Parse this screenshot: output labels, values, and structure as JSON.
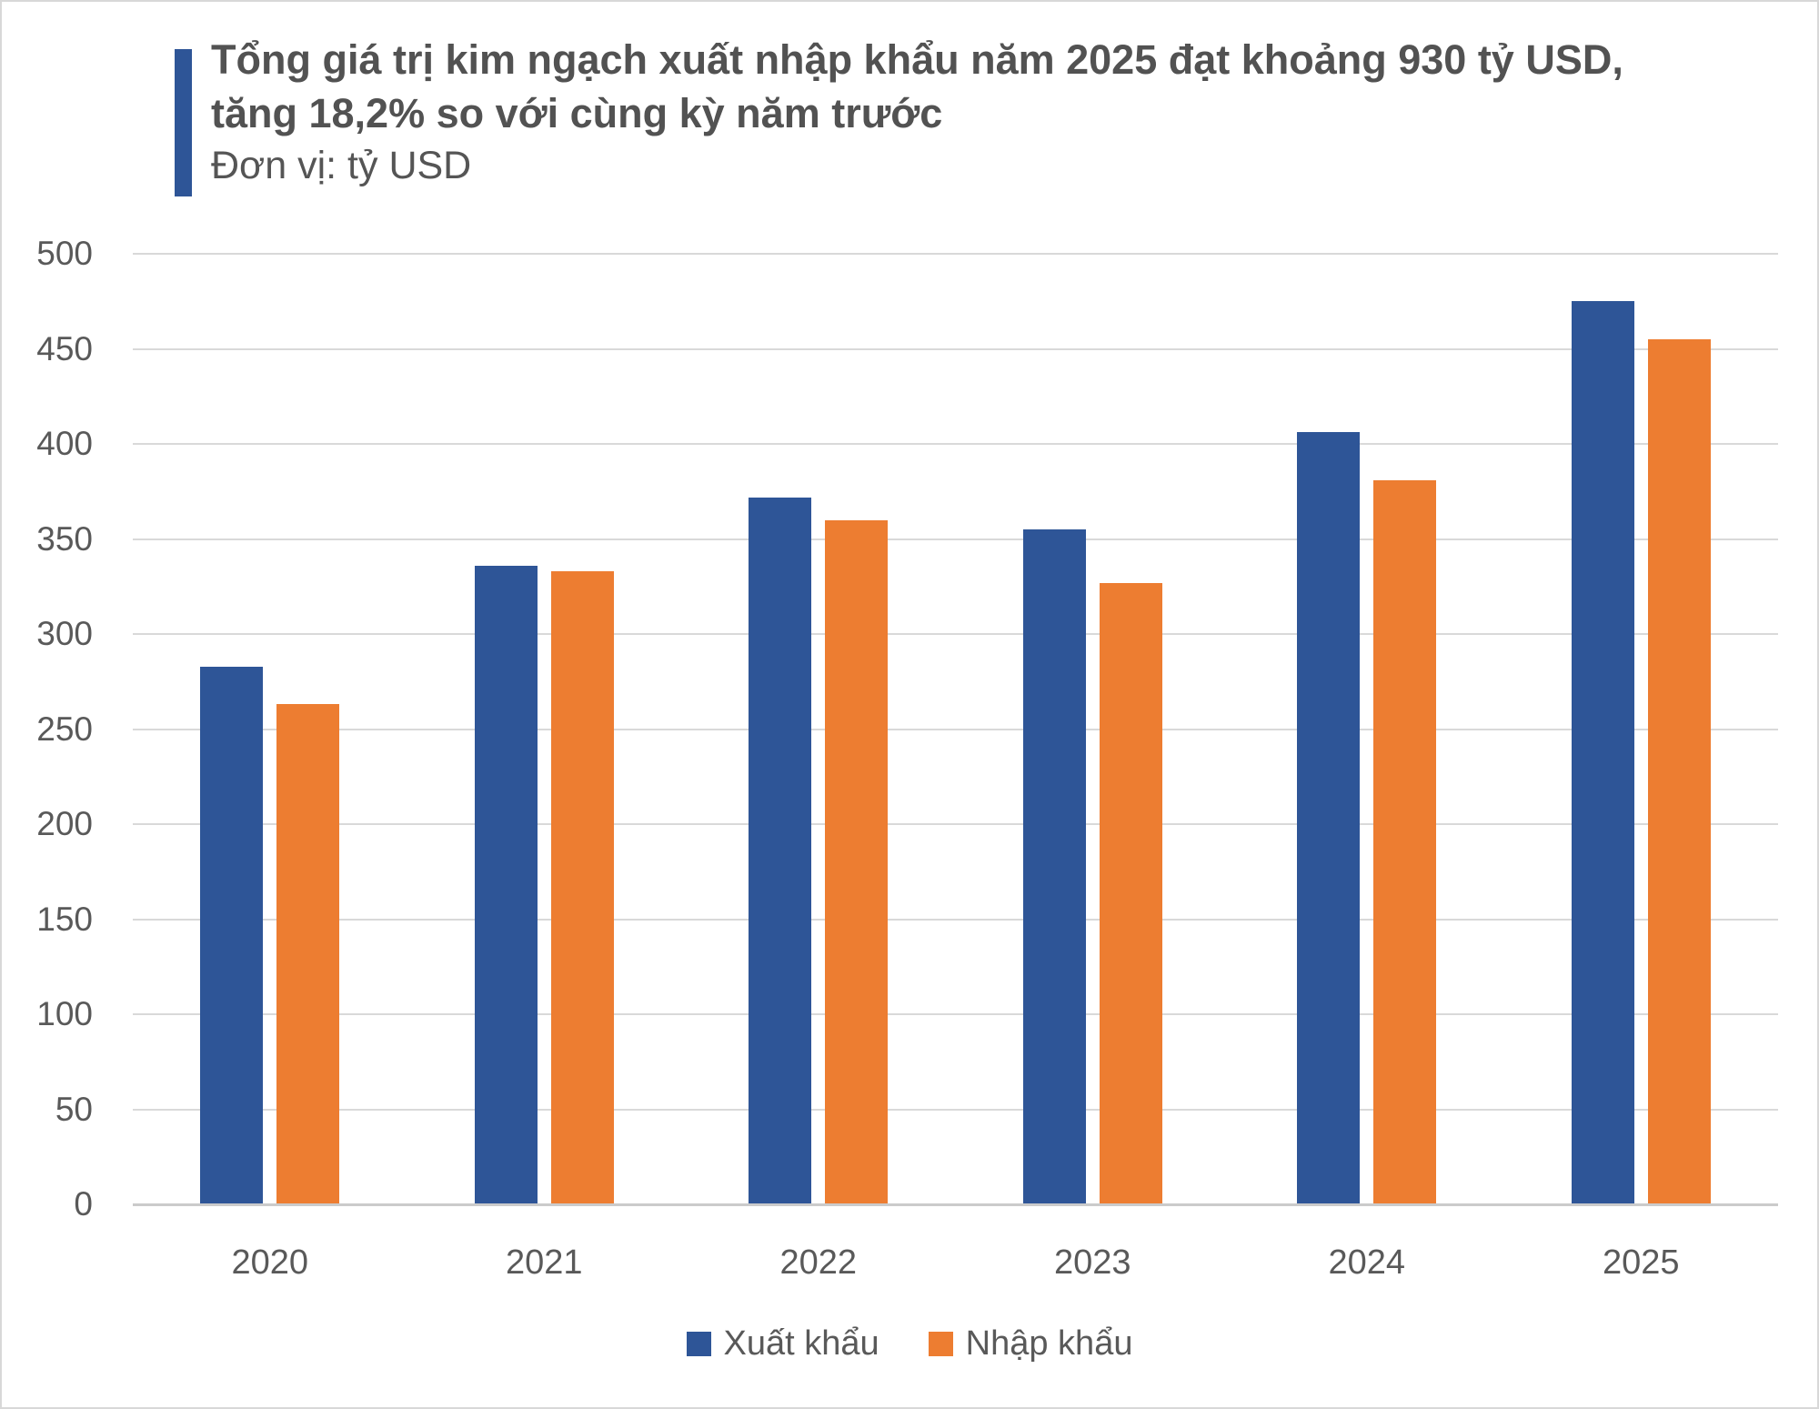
{
  "header": {
    "title_line1": "Tổng giá trị kim ngạch xuất nhập khẩu năm 2025 đạt khoảng 930 tỷ USD,",
    "title_line2": "tăng 18,2% so với cùng kỳ năm trước",
    "unit_label": "Đơn vị: tỷ USD",
    "accent_color": "#2E5597"
  },
  "chart_data": {
    "type": "bar",
    "title": "Tổng giá trị kim ngạch xuất nhập khẩu năm 2025 đạt khoảng 930 tỷ USD, tăng 18,2% so với cùng kỳ năm trước",
    "unit": "tỷ USD",
    "categories": [
      "2020",
      "2021",
      "2022",
      "2023",
      "2024",
      "2025"
    ],
    "series": [
      {
        "name": "Xuất khẩu",
        "color": "#2E5597",
        "values": [
          283,
          336,
          372,
          355,
          406,
          475
        ]
      },
      {
        "name": "Nhập khẩu",
        "color": "#ED7D31",
        "values": [
          263,
          333,
          360,
          327,
          381,
          455
        ]
      }
    ],
    "ylim": [
      0,
      500
    ],
    "ytick_step": 50,
    "grid": true,
    "legend_position": "bottom",
    "colors": {
      "gridline": "#D9D9D9",
      "axisline": "#CBCBCB",
      "labels": "#595959"
    }
  }
}
